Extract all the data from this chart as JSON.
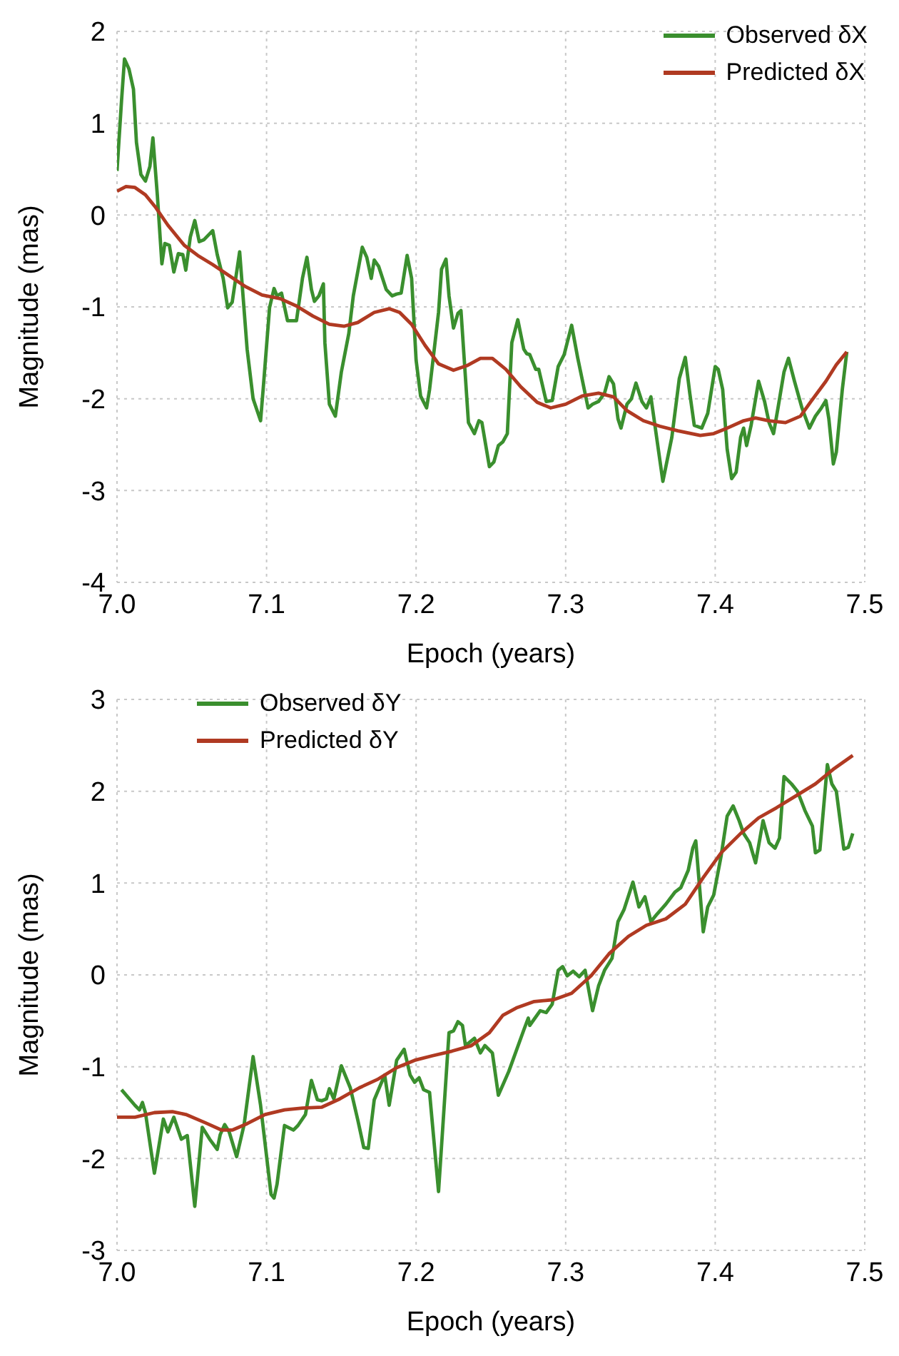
{
  "chart_data": [
    {
      "type": "line",
      "xlabel": "Epoch (years)",
      "ylabel": "Magnitude (mas)",
      "xlim": [
        7.0,
        7.5
      ],
      "xticks": [
        {
          "value": 7.0,
          "label": "7.0"
        },
        7.1,
        7.2,
        7.3,
        7.4,
        7.5
      ],
      "ylim": [
        -4,
        2
      ],
      "yticks": [
        -4,
        -3,
        -2,
        -1,
        0,
        1,
        2
      ],
      "grid": true,
      "legend": "top right",
      "marker": "none",
      "line_style": "solid",
      "series": [
        {
          "name": "Observed δX",
          "color": "#3a8f2e",
          "x": [
            7.0,
            7.003,
            7.005,
            7.008,
            7.011,
            7.013,
            7.016,
            7.019,
            7.022,
            7.024,
            7.027,
            7.03,
            7.032,
            7.035,
            7.038,
            7.041,
            7.044,
            7.046,
            7.049,
            7.052,
            7.055,
            7.058,
            7.061,
            7.064,
            7.067,
            7.071,
            7.074,
            7.077,
            7.082,
            7.087,
            7.091,
            7.096,
            7.098,
            7.102,
            7.105,
            7.107,
            7.11,
            7.114,
            7.12,
            7.124,
            7.127,
            7.13,
            7.132,
            7.135,
            7.138,
            7.139,
            7.142,
            7.146,
            7.15,
            7.155,
            7.158,
            7.164,
            7.167,
            7.17,
            7.172,
            7.175,
            7.18,
            7.184,
            7.187,
            7.19,
            7.194,
            7.197,
            7.2,
            7.203,
            7.207,
            7.209,
            7.215,
            7.217,
            7.22,
            7.222,
            7.225,
            7.228,
            7.23,
            7.235,
            7.239,
            7.242,
            7.244,
            7.249,
            7.252,
            7.255,
            7.258,
            7.261,
            7.264,
            7.268,
            7.272,
            7.274,
            7.276,
            7.28,
            7.282,
            7.287,
            7.291,
            7.295,
            7.299,
            7.304,
            7.308,
            7.315,
            7.318,
            7.322,
            7.326,
            7.329,
            7.332,
            7.335,
            7.337,
            7.341,
            7.344,
            7.347,
            7.351,
            7.354,
            7.357,
            7.365,
            7.371,
            7.376,
            7.38,
            7.383,
            7.386,
            7.391,
            7.395,
            7.4,
            7.402,
            7.405,
            7.408,
            7.411,
            7.414,
            7.417,
            7.419,
            7.421,
            7.424,
            7.429,
            7.433,
            7.436,
            7.439,
            7.442,
            7.446,
            7.449,
            7.453,
            7.458,
            7.463,
            7.467,
            7.471,
            7.474,
            7.476,
            7.479,
            7.481,
            7.485,
            7.488
          ],
          "values": [
            0.48,
            1.24,
            1.7,
            1.59,
            1.37,
            0.79,
            0.44,
            0.37,
            0.53,
            0.84,
            0.21,
            -0.53,
            -0.31,
            -0.33,
            -0.62,
            -0.42,
            -0.43,
            -0.6,
            -0.24,
            -0.06,
            -0.29,
            -0.27,
            -0.22,
            -0.17,
            -0.43,
            -0.69,
            -1.01,
            -0.95,
            -0.4,
            -1.46,
            -2.0,
            -2.24,
            -1.84,
            -1.01,
            -0.8,
            -0.88,
            -0.85,
            -1.15,
            -1.15,
            -0.69,
            -0.46,
            -0.81,
            -0.94,
            -0.88,
            -0.75,
            -1.39,
            -2.06,
            -2.19,
            -1.71,
            -1.29,
            -0.88,
            -0.35,
            -0.46,
            -0.69,
            -0.49,
            -0.56,
            -0.81,
            -0.88,
            -0.86,
            -0.85,
            -0.44,
            -0.69,
            -1.58,
            -1.97,
            -2.1,
            -1.9,
            -1.06,
            -0.59,
            -0.48,
            -0.88,
            -1.23,
            -1.07,
            -1.04,
            -2.26,
            -2.38,
            -2.24,
            -2.26,
            -2.74,
            -2.69,
            -2.51,
            -2.47,
            -2.38,
            -1.39,
            -1.14,
            -1.46,
            -1.51,
            -1.52,
            -1.68,
            -1.68,
            -2.03,
            -2.02,
            -1.65,
            -1.52,
            -1.2,
            -1.55,
            -2.1,
            -2.06,
            -2.03,
            -1.94,
            -1.76,
            -1.84,
            -2.22,
            -2.32,
            -2.06,
            -2.0,
            -1.83,
            -2.03,
            -2.1,
            -1.98,
            -2.9,
            -2.42,
            -1.78,
            -1.55,
            -1.94,
            -2.29,
            -2.32,
            -2.16,
            -1.65,
            -1.68,
            -1.9,
            -2.55,
            -2.87,
            -2.8,
            -2.42,
            -2.32,
            -2.51,
            -2.29,
            -1.81,
            -2.03,
            -2.26,
            -2.38,
            -2.1,
            -1.71,
            -1.56,
            -1.81,
            -2.1,
            -2.32,
            -2.19,
            -2.1,
            -2.02,
            -2.22,
            -2.71,
            -2.58,
            -1.9,
            -1.49
          ]
        },
        {
          "name": "Predicted δX",
          "color": "#b03a22",
          "x": [
            7.0,
            7.006,
            7.012,
            7.019,
            7.026,
            7.034,
            7.045,
            7.054,
            7.064,
            7.075,
            7.086,
            7.097,
            7.109,
            7.12,
            7.131,
            7.142,
            7.152,
            7.161,
            7.172,
            7.182,
            7.189,
            7.197,
            7.206,
            7.215,
            7.225,
            7.234,
            7.243,
            7.251,
            7.26,
            7.27,
            7.281,
            7.29,
            7.3,
            7.311,
            7.322,
            7.332,
            7.341,
            7.352,
            7.363,
            7.375,
            7.39,
            7.399,
            7.408,
            7.419,
            7.427,
            7.436,
            7.447,
            7.457,
            7.464,
            7.474,
            7.481,
            7.488
          ],
          "values": [
            0.26,
            0.31,
            0.3,
            0.22,
            0.08,
            -0.11,
            -0.33,
            -0.44,
            -0.54,
            -0.66,
            -0.78,
            -0.87,
            -0.91,
            -0.99,
            -1.1,
            -1.19,
            -1.21,
            -1.17,
            -1.06,
            -1.02,
            -1.06,
            -1.19,
            -1.42,
            -1.62,
            -1.69,
            -1.64,
            -1.56,
            -1.56,
            -1.68,
            -1.87,
            -2.04,
            -2.1,
            -2.06,
            -1.97,
            -1.94,
            -1.98,
            -2.13,
            -2.24,
            -2.3,
            -2.35,
            -2.4,
            -2.38,
            -2.32,
            -2.24,
            -2.21,
            -2.24,
            -2.26,
            -2.19,
            -2.03,
            -1.81,
            -1.63,
            -1.49
          ]
        }
      ]
    },
    {
      "type": "line",
      "xlabel": "Epoch (years)",
      "ylabel": "Magnitude (mas)",
      "xlim": [
        7.0,
        7.5
      ],
      "xticks": [
        {
          "value": 7.0,
          "label": "7.0"
        },
        7.1,
        7.2,
        7.3,
        7.4,
        7.5
      ],
      "ylim": [
        -3,
        3
      ],
      "yticks": [
        -3,
        -2,
        -1,
        0,
        1,
        2,
        3
      ],
      "grid": true,
      "legend": "top left",
      "marker": "none",
      "line_style": "solid",
      "series": [
        {
          "name": "Observed δY",
          "color": "#3a8f2e",
          "x": [
            7.003,
            7.012,
            7.015,
            7.017,
            7.019,
            7.025,
            7.031,
            7.034,
            7.038,
            7.043,
            7.047,
            7.052,
            7.057,
            7.062,
            7.067,
            7.069,
            7.072,
            7.075,
            7.08,
            7.085,
            7.091,
            7.096,
            7.103,
            7.105,
            7.107,
            7.112,
            7.118,
            7.121,
            7.126,
            7.13,
            7.134,
            7.137,
            7.14,
            7.142,
            7.145,
            7.15,
            7.156,
            7.161,
            7.165,
            7.168,
            7.172,
            7.179,
            7.182,
            7.187,
            7.192,
            7.196,
            7.199,
            7.202,
            7.205,
            7.209,
            7.215,
            7.222,
            7.225,
            7.228,
            7.231,
            7.233,
            7.239,
            7.243,
            7.246,
            7.251,
            7.255,
            7.262,
            7.272,
            7.275,
            7.276,
            7.283,
            7.287,
            7.291,
            7.295,
            7.298,
            7.301,
            7.305,
            7.309,
            7.313,
            7.318,
            7.322,
            7.326,
            7.331,
            7.335,
            7.339,
            7.345,
            7.349,
            7.353,
            7.357,
            7.361,
            7.367,
            7.373,
            7.377,
            7.382,
            7.385,
            7.387,
            7.392,
            7.395,
            7.399,
            7.404,
            7.408,
            7.412,
            7.416,
            7.419,
            7.423,
            7.427,
            7.432,
            7.436,
            7.44,
            7.443,
            7.446,
            7.451,
            7.455,
            7.46,
            7.465,
            7.467,
            7.47,
            7.475,
            7.478,
            7.481,
            7.486,
            7.489,
            7.492
          ],
          "values": [
            -1.25,
            -1.42,
            -1.47,
            -1.39,
            -1.5,
            -2.16,
            -1.57,
            -1.71,
            -1.55,
            -1.79,
            -1.75,
            -2.52,
            -1.66,
            -1.79,
            -1.9,
            -1.74,
            -1.63,
            -1.71,
            -1.98,
            -1.63,
            -0.89,
            -1.42,
            -2.39,
            -2.43,
            -2.28,
            -1.64,
            -1.69,
            -1.64,
            -1.52,
            -1.15,
            -1.36,
            -1.37,
            -1.35,
            -1.24,
            -1.35,
            -0.99,
            -1.23,
            -1.58,
            -1.88,
            -1.89,
            -1.36,
            -1.09,
            -1.42,
            -0.93,
            -0.81,
            -1.09,
            -1.17,
            -1.12,
            -1.25,
            -1.28,
            -2.36,
            -0.63,
            -0.61,
            -0.51,
            -0.55,
            -0.77,
            -0.69,
            -0.85,
            -0.77,
            -0.85,
            -1.31,
            -1.05,
            -0.6,
            -0.47,
            -0.55,
            -0.39,
            -0.41,
            -0.32,
            0.05,
            0.09,
            -0.01,
            0.04,
            -0.02,
            0.05,
            -0.39,
            -0.12,
            0.05,
            0.18,
            0.58,
            0.71,
            1.01,
            0.74,
            0.85,
            0.58,
            0.66,
            0.77,
            0.9,
            0.95,
            1.14,
            1.38,
            1.46,
            0.47,
            0.74,
            0.87,
            1.3,
            1.73,
            1.84,
            1.68,
            1.54,
            1.44,
            1.22,
            1.68,
            1.44,
            1.38,
            1.49,
            2.16,
            2.08,
            2.0,
            1.79,
            1.62,
            1.33,
            1.36,
            2.29,
            2.08,
            2.0,
            1.37,
            1.39,
            1.54
          ]
        },
        {
          "name": "Predicted δY",
          "color": "#b03a22",
          "x": [
            7.0,
            7.012,
            7.025,
            7.037,
            7.046,
            7.059,
            7.07,
            7.077,
            7.087,
            7.099,
            7.112,
            7.124,
            7.137,
            7.149,
            7.162,
            7.174,
            7.187,
            7.199,
            7.211,
            7.224,
            7.237,
            7.249,
            7.258,
            7.267,
            7.279,
            7.292,
            7.304,
            7.317,
            7.329,
            7.342,
            7.354,
            7.367,
            7.38,
            7.392,
            7.404,
            7.417,
            7.429,
            7.441,
            7.454,
            7.467,
            7.479,
            7.492
          ],
          "values": [
            -1.55,
            -1.55,
            -1.5,
            -1.49,
            -1.52,
            -1.61,
            -1.69,
            -1.69,
            -1.62,
            -1.52,
            -1.47,
            -1.45,
            -1.44,
            -1.35,
            -1.23,
            -1.14,
            -1.01,
            -0.93,
            -0.88,
            -0.83,
            -0.77,
            -0.63,
            -0.44,
            -0.36,
            -0.29,
            -0.27,
            -0.2,
            -0.01,
            0.23,
            0.42,
            0.54,
            0.61,
            0.77,
            1.06,
            1.33,
            1.54,
            1.71,
            1.82,
            1.95,
            2.08,
            2.24,
            2.39
          ]
        }
      ]
    }
  ]
}
